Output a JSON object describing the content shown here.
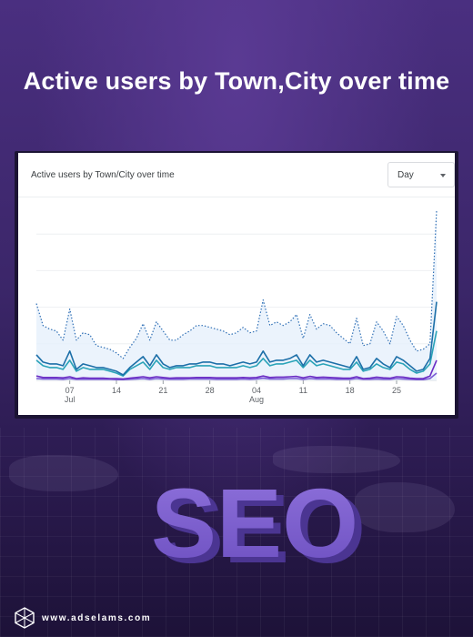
{
  "headline": "Active users by Town,City over time",
  "panel": {
    "title": "Active users by Town/City over time",
    "granularity": "Day"
  },
  "chart_data": {
    "type": "line",
    "title": "Active users by Town/City over time",
    "x_ticks": [
      {
        "day": "07",
        "month": "Jul"
      },
      {
        "day": "14",
        "month": ""
      },
      {
        "day": "21",
        "month": ""
      },
      {
        "day": "28",
        "month": ""
      },
      {
        "day": "04",
        "month": "Aug"
      },
      {
        "day": "11",
        "month": ""
      },
      {
        "day": "18",
        "month": ""
      },
      {
        "day": "25",
        "month": ""
      }
    ],
    "ylim": [
      0,
      5
    ],
    "gridlines": 4,
    "series": [
      {
        "style": "dotted",
        "color": "#2f6fb5",
        "values": [
          2.1,
          1.5,
          1.4,
          1.35,
          1.1,
          1.95,
          1.1,
          1.3,
          1.25,
          0.95,
          0.9,
          0.85,
          0.75,
          0.6,
          0.9,
          1.15,
          1.55,
          1.1,
          1.6,
          1.35,
          1.1,
          1.1,
          1.25,
          1.35,
          1.5,
          1.5,
          1.45,
          1.4,
          1.35,
          1.25,
          1.3,
          1.45,
          1.3,
          1.35,
          2.2,
          1.5,
          1.6,
          1.5,
          1.6,
          1.8,
          1.15,
          1.8,
          1.4,
          1.55,
          1.5,
          1.3,
          1.15,
          1.0,
          1.7,
          0.95,
          1.0,
          1.6,
          1.35,
          1.0,
          1.75,
          1.5,
          1.1,
          0.8,
          0.85,
          1.0,
          4.65
        ]
      },
      {
        "style": "solid",
        "color": "#1c6fa8",
        "values": [
          0.7,
          0.5,
          0.45,
          0.45,
          0.4,
          0.8,
          0.3,
          0.45,
          0.4,
          0.35,
          0.35,
          0.3,
          0.25,
          0.15,
          0.35,
          0.5,
          0.65,
          0.4,
          0.7,
          0.45,
          0.35,
          0.4,
          0.4,
          0.45,
          0.45,
          0.5,
          0.5,
          0.45,
          0.45,
          0.4,
          0.45,
          0.5,
          0.45,
          0.5,
          0.8,
          0.5,
          0.55,
          0.55,
          0.6,
          0.7,
          0.4,
          0.7,
          0.5,
          0.55,
          0.5,
          0.45,
          0.4,
          0.35,
          0.65,
          0.3,
          0.35,
          0.6,
          0.45,
          0.35,
          0.65,
          0.55,
          0.4,
          0.25,
          0.3,
          0.6,
          2.15
        ]
      },
      {
        "style": "solid",
        "color": "#2aa3b8",
        "values": [
          0.55,
          0.4,
          0.35,
          0.35,
          0.3,
          0.55,
          0.25,
          0.35,
          0.3,
          0.3,
          0.3,
          0.25,
          0.2,
          0.12,
          0.3,
          0.4,
          0.5,
          0.3,
          0.55,
          0.35,
          0.3,
          0.35,
          0.35,
          0.35,
          0.4,
          0.4,
          0.4,
          0.35,
          0.35,
          0.35,
          0.35,
          0.4,
          0.35,
          0.4,
          0.6,
          0.4,
          0.45,
          0.45,
          0.5,
          0.55,
          0.35,
          0.55,
          0.4,
          0.45,
          0.4,
          0.35,
          0.3,
          0.3,
          0.5,
          0.25,
          0.3,
          0.45,
          0.35,
          0.3,
          0.5,
          0.45,
          0.3,
          0.2,
          0.25,
          0.45,
          1.35
        ]
      },
      {
        "style": "solid",
        "color": "#6a2bc4",
        "values": [
          0.12,
          0.08,
          0.08,
          0.08,
          0.07,
          0.1,
          0.05,
          0.07,
          0.06,
          0.06,
          0.06,
          0.05,
          0.05,
          0.04,
          0.06,
          0.08,
          0.1,
          0.07,
          0.1,
          0.08,
          0.06,
          0.07,
          0.07,
          0.07,
          0.08,
          0.08,
          0.08,
          0.07,
          0.07,
          0.07,
          0.07,
          0.08,
          0.07,
          0.08,
          0.12,
          0.08,
          0.09,
          0.09,
          0.1,
          0.11,
          0.07,
          0.11,
          0.08,
          0.09,
          0.08,
          0.07,
          0.06,
          0.06,
          0.1,
          0.05,
          0.06,
          0.09,
          0.07,
          0.06,
          0.1,
          0.09,
          0.06,
          0.05,
          0.05,
          0.12,
          0.55
        ]
      },
      {
        "style": "solid",
        "color": "#7b5bd6",
        "values": [
          0.05,
          0.04,
          0.04,
          0.04,
          0.03,
          0.05,
          0.03,
          0.03,
          0.03,
          0.03,
          0.03,
          0.03,
          0.02,
          0.02,
          0.03,
          0.04,
          0.05,
          0.03,
          0.05,
          0.04,
          0.03,
          0.03,
          0.03,
          0.04,
          0.04,
          0.04,
          0.04,
          0.03,
          0.03,
          0.03,
          0.03,
          0.04,
          0.03,
          0.04,
          0.06,
          0.04,
          0.04,
          0.04,
          0.05,
          0.05,
          0.03,
          0.05,
          0.04,
          0.04,
          0.04,
          0.03,
          0.03,
          0.03,
          0.05,
          0.03,
          0.03,
          0.04,
          0.03,
          0.03,
          0.05,
          0.04,
          0.03,
          0.02,
          0.02,
          0.05,
          0.2
        ]
      }
    ]
  },
  "seo_graphic": {
    "text": "SEO",
    "color": "#7d5fd0"
  },
  "footer": {
    "site": "www.adselams.com",
    "logo_icon": "hexagon-network-icon"
  }
}
